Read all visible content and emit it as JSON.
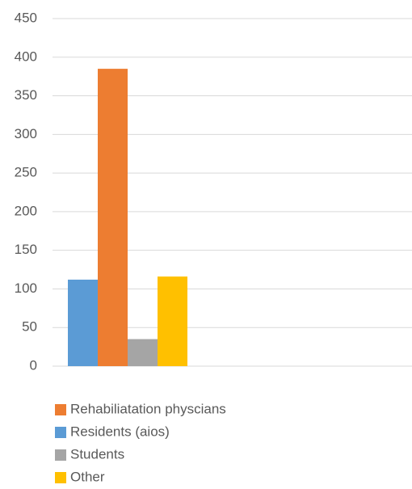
{
  "chart_data": {
    "type": "bar",
    "categories": [
      null
    ],
    "series": [
      {
        "name": "Residents (aios)",
        "color": "#5b9bd5",
        "values": [
          112
        ]
      },
      {
        "name": "Rehabiliatation physcians",
        "color": "#ed7d31",
        "values": [
          385
        ]
      },
      {
        "name": "Students",
        "color": "#a5a5a5",
        "values": [
          35
        ]
      },
      {
        "name": "Other",
        "color": "#ffc000",
        "values": [
          116
        ]
      }
    ],
    "legend_order": [
      1,
      0,
      2,
      3
    ],
    "ylim": [
      0,
      450
    ],
    "yticks": [
      0,
      50,
      100,
      150,
      200,
      250,
      300,
      350,
      400,
      450
    ],
    "grid": true,
    "legend": "bottom"
  }
}
